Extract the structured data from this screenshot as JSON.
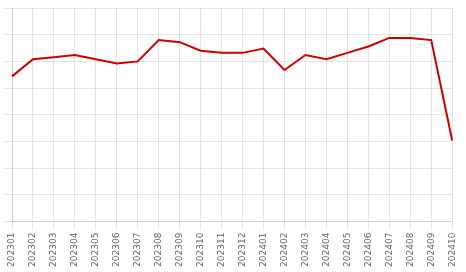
{
  "chart_data": {
    "type": "line",
    "categories": [
      "202301",
      "202302",
      "202303",
      "202304",
      "202305",
      "202306",
      "202307",
      "202308",
      "202309",
      "202310",
      "202311",
      "202312",
      "202401",
      "202402",
      "202403",
      "202404",
      "202405",
      "202406",
      "202407",
      "202408",
      "202409",
      "202410"
    ],
    "values": [
      68,
      76,
      77,
      78,
      76,
      74,
      75,
      85,
      84,
      80,
      79,
      79,
      81,
      71,
      78,
      76,
      79,
      82,
      86,
      86,
      85,
      38
    ],
    "color": "#cc0000",
    "ylim": [
      0,
      100
    ],
    "yticks": [
      0,
      12.5,
      25,
      37.5,
      50,
      62.5,
      75,
      87.5,
      100
    ],
    "grid": true,
    "tick_labels": "x"
  }
}
